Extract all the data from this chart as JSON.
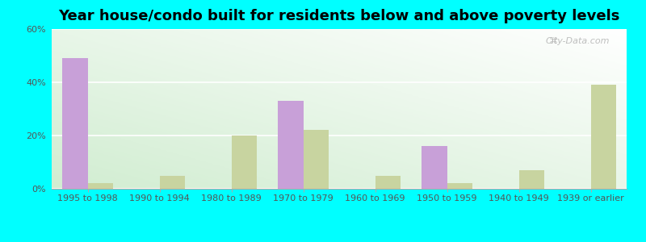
{
  "title": "Year house/condo built for residents below and above poverty levels",
  "categories": [
    "1995 to 1998",
    "1990 to 1994",
    "1980 to 1989",
    "1970 to 1979",
    "1960 to 1969",
    "1950 to 1959",
    "1940 to 1949",
    "1939 or earlier"
  ],
  "below_poverty": [
    49,
    0,
    0,
    33,
    0,
    16,
    0,
    0
  ],
  "above_poverty": [
    2,
    5,
    20,
    22,
    5,
    2,
    7,
    39
  ],
  "below_color": "#c8a0d8",
  "above_color": "#c8d4a0",
  "outer_background": "#00ffff",
  "ylim": [
    0,
    60
  ],
  "yticks": [
    0,
    20,
    40,
    60
  ],
  "ytick_labels": [
    "0%",
    "20%",
    "40%",
    "60%"
  ],
  "bar_width": 0.35,
  "title_fontsize": 13,
  "tick_fontsize": 8,
  "legend_fontsize": 9
}
